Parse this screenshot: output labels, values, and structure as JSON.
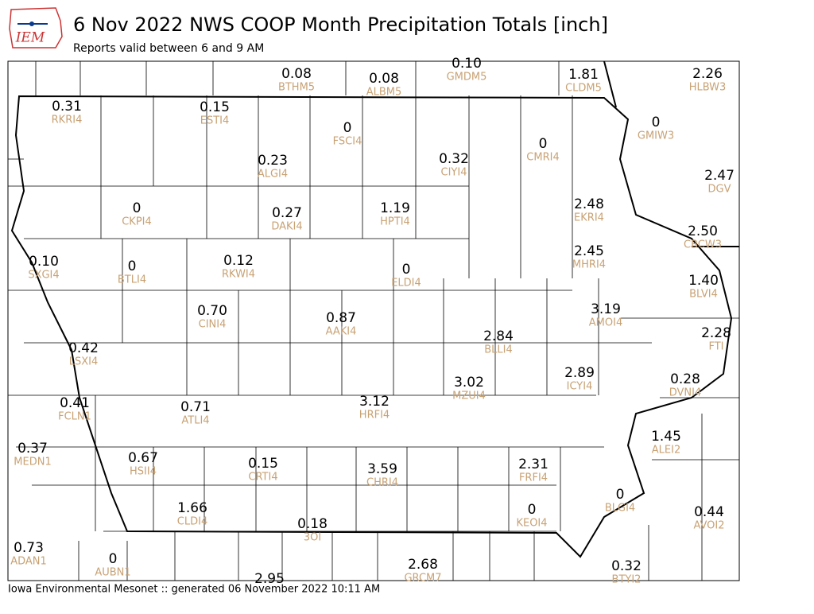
{
  "header": {
    "logo": "IEM",
    "title": "6 Nov 2022 NWS COOP Month Precipitation Totals [inch]",
    "subtitle": "Reports valid between 6 and 9 AM"
  },
  "stations": [
    {
      "value": "0.10",
      "id": "GMDM5"
    },
    {
      "value": "0.08",
      "id": "BTHM5"
    },
    {
      "value": "0.08",
      "id": "ALBM5"
    },
    {
      "value": "1.81",
      "id": "CLDM5"
    },
    {
      "value": "2.26",
      "id": "HLBW3"
    },
    {
      "value": "0.31",
      "id": "RKRI4"
    },
    {
      "value": "0.15",
      "id": "ESTI4"
    },
    {
      "value": "0",
      "id": "FSCI4"
    },
    {
      "value": "0",
      "id": "GMIW3"
    },
    {
      "value": "0",
      "id": "CMRI4"
    },
    {
      "value": "0.23",
      "id": "ALGI4"
    },
    {
      "value": "0.32",
      "id": "CIYI4"
    },
    {
      "value": "2.47",
      "id": "DGV"
    },
    {
      "value": "0",
      "id": "CKPI4"
    },
    {
      "value": "0.27",
      "id": "DAKI4"
    },
    {
      "value": "1.19",
      "id": "HPTI4"
    },
    {
      "value": "2.48",
      "id": "EKRI4"
    },
    {
      "value": "2.50",
      "id": "CBCW3"
    },
    {
      "value": "0.10",
      "id": "SXGI4"
    },
    {
      "value": "0",
      "id": "BTLI4"
    },
    {
      "value": "0.12",
      "id": "RKWI4"
    },
    {
      "value": "0",
      "id": "ELDI4"
    },
    {
      "value": "2.45",
      "id": "MHRI4"
    },
    {
      "value": "1.40",
      "id": "BLVI4"
    },
    {
      "value": "0.70",
      "id": "CINI4"
    },
    {
      "value": "0.87",
      "id": "AAKI4"
    },
    {
      "value": "3.19",
      "id": "AMOI4"
    },
    {
      "value": "2.28",
      "id": "FTI"
    },
    {
      "value": "0.42",
      "id": "LSXI4"
    },
    {
      "value": "2.84",
      "id": "BLLI4"
    },
    {
      "value": "2.89",
      "id": "ICYI4"
    },
    {
      "value": "0.28",
      "id": "DVNI4"
    },
    {
      "value": "3.02",
      "id": "MZUI4"
    },
    {
      "value": "0.41",
      "id": "FCLN1"
    },
    {
      "value": "0.71",
      "id": "ATLI4"
    },
    {
      "value": "3.12",
      "id": "HRFI4"
    },
    {
      "value": "0.37",
      "id": "MEDN1"
    },
    {
      "value": "1.45",
      "id": "ALEI2"
    },
    {
      "value": "0.67",
      "id": "HSII4"
    },
    {
      "value": "0.15",
      "id": "CRTI4"
    },
    {
      "value": "3.59",
      "id": "CHRI4"
    },
    {
      "value": "2.31",
      "id": "FRFI4"
    },
    {
      "value": "0",
      "id": "BLGI4"
    },
    {
      "value": "1.66",
      "id": "CLDI4"
    },
    {
      "value": "0",
      "id": "KEOI4"
    },
    {
      "value": "0.44",
      "id": "AVOI2"
    },
    {
      "value": "0.18",
      "id": "3OI"
    },
    {
      "value": "0.73",
      "id": "ADAN1"
    },
    {
      "value": "0",
      "id": "AUBN1"
    },
    {
      "value": "2.68",
      "id": "GRCM7"
    },
    {
      "value": "0.32",
      "id": "BTYI2"
    },
    {
      "value": "2.95"
    }
  ],
  "footer": "Iowa Environmental Mesonet :: generated 06 November 2022 10:11 AM"
}
